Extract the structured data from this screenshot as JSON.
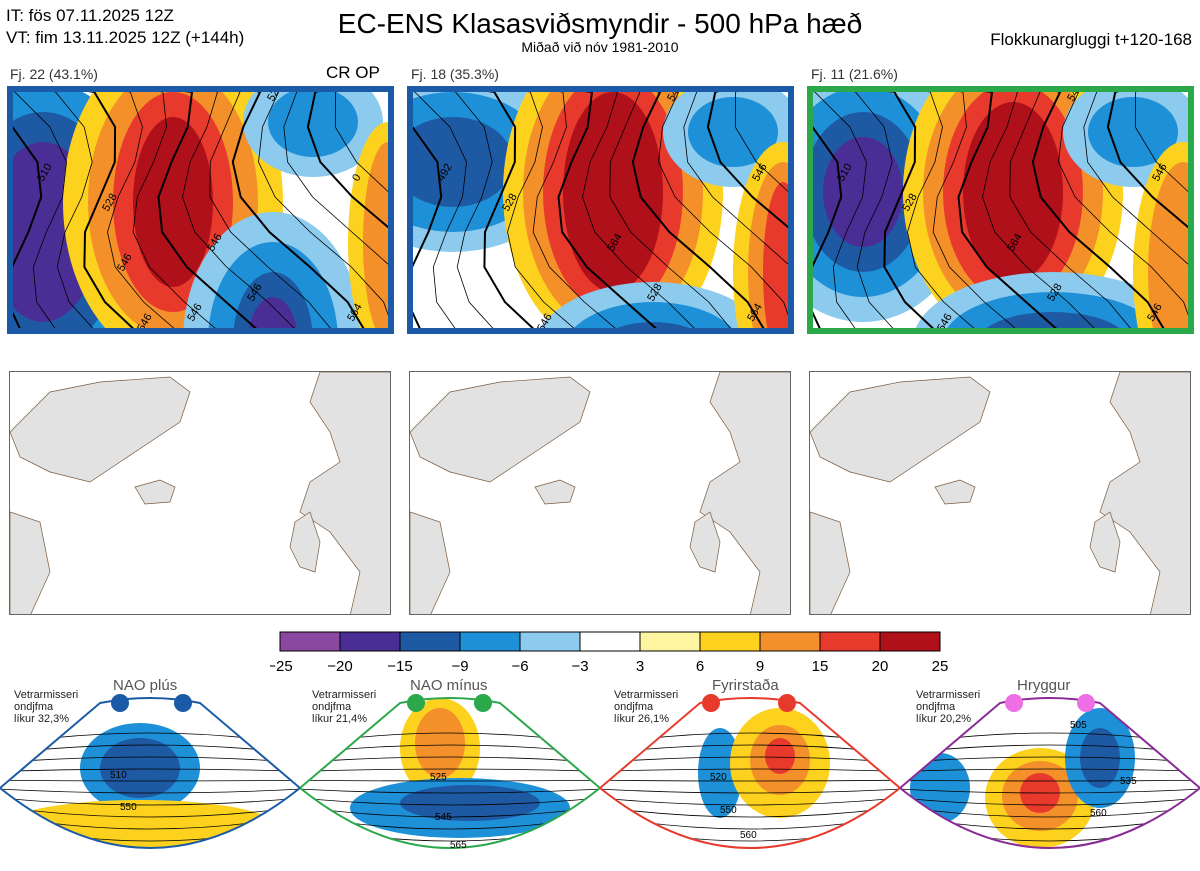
{
  "header": {
    "it_line": "IT: fös 07.11.2025 12Z",
    "vt_line": "VT: fim 13.11.2025 12Z  (+144h)",
    "title": "EC-ENS Klasasviðsmyndir - 500 hPa hæð",
    "subtitle": "Miðað við nóv 1981-2010",
    "window": "Flokkunargluggi t+120-168"
  },
  "clusters": [
    {
      "label": "Fj. 22 (43.1%)",
      "extra": "CR OP",
      "border_color": "#1a5aa6",
      "contours": [
        "510",
        "528",
        "546",
        "546",
        "546",
        "528",
        "0",
        "564",
        "546",
        "546"
      ]
    },
    {
      "label": "Fj. 18 (35.3%)",
      "extra": "",
      "border_color": "#1a5aa6",
      "contours": [
        "492",
        "528",
        "546",
        "564",
        "528",
        "546",
        "546",
        "564"
      ]
    },
    {
      "label": "Fj. 11 (21.6%)",
      "extra": "",
      "border_color": "#2aa84a",
      "contours": [
        "510",
        "528",
        "546",
        "564",
        "528",
        "546",
        "546",
        "546"
      ]
    }
  ],
  "colorbar": {
    "ticks": [
      "−25",
      "−20",
      "−15",
      "−9",
      "−6",
      "−3",
      "3",
      "6",
      "9",
      "15",
      "20",
      "25"
    ],
    "colors": [
      "#8a48a0",
      "#4a2e96",
      "#1e5aa4",
      "#1e90d8",
      "#8ccaee",
      "#ffffff",
      "#fff4a0",
      "#fcd21e",
      "#f4902a",
      "#e83a2c",
      "#b0101a"
    ]
  },
  "regimes": [
    {
      "name": "NAO plús",
      "frame_color": "#1a5aa6",
      "dot_color": "#1a5aa6",
      "lines": [
        "Vetrarmisseri",
        "ondjfma",
        "líkur 32,3%"
      ],
      "contours": [
        "510",
        "550"
      ]
    },
    {
      "name": "NAO mínus",
      "frame_color": "#2aa84a",
      "dot_color": "#2aa84a",
      "lines": [
        "Vetrarmisseri",
        "ondjfma",
        "líkur 21,4%"
      ],
      "contours": [
        "525",
        "545",
        "565"
      ]
    },
    {
      "name": "Fyrirstaða",
      "frame_color": "#e83a2c",
      "dot_color": "#e83a2c",
      "lines": [
        "Vetrarmisseri",
        "ondjfma",
        "líkur 26,1%"
      ],
      "contours": [
        "520",
        "550",
        "560"
      ]
    },
    {
      "name": "Hryggur",
      "frame_color": "#8a2a96",
      "dot_color": "#ee6ee6",
      "lines": [
        "Vetrarmisseri",
        "ondjfma",
        "líkur 20,2%"
      ],
      "contours": [
        "505",
        "535",
        "560"
      ]
    }
  ]
}
